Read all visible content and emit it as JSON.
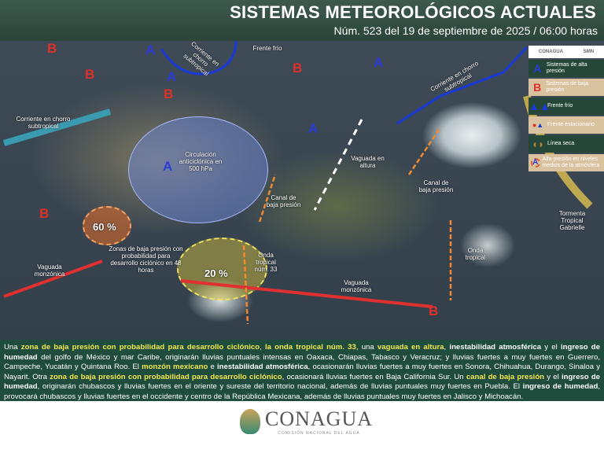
{
  "header": {
    "title": "SISTEMAS METEOROLÓGICOS ACTUALES",
    "subtitle": "Núm. 523 del 19 de septiembre de 2025 / 06:00 horas"
  },
  "legend": {
    "logos": [
      "CONAGUA",
      "SMN"
    ],
    "items": [
      {
        "symbol": "A",
        "label": "Sistemas de alta presión"
      },
      {
        "symbol": "B",
        "label": "Sistemas de baja presión"
      },
      {
        "symbol": "cold-front-icon",
        "label": "Frente frío"
      },
      {
        "symbol": "stationary-front-icon",
        "label": "Frente estacionario"
      },
      {
        "symbol": "dry-line-icon",
        "label": "Línea seca"
      },
      {
        "symbol": "A",
        "label": "Alta presión en niveles medios de la atmósfera"
      }
    ]
  },
  "map": {
    "labels": [
      "Corriente en chorro subtropical",
      "Frente frío",
      "Corriente en chorro subtropical",
      "Circulación anticiclónica en 500 hPa",
      "Vaguada en altura",
      "Corriente en chorro subtropical",
      "Canal de baja presión",
      "Canal de baja presión",
      "Zonas de baja presión con probabilidad para desarrollo ciclónico en 48 horas",
      "Onda tropical núm. 33",
      "Vaguada monzónica",
      "Vaguada monzónica",
      "Onda tropical",
      "Tormenta Tropical Gabrielle"
    ],
    "probabilities": [
      "60 %",
      "20 %"
    ],
    "colors": {
      "high": "#2a3cd8",
      "low": "#e0302a",
      "cold_front": "#1a3ad8",
      "trough": "#f08a30",
      "monsoon": "#e03030"
    }
  },
  "bulletin": [
    {
      "t": "Una "
    },
    {
      "t": "zona de baja presión con probabilidad para desarrollo ciclónico",
      "s": "hl"
    },
    {
      "t": ", "
    },
    {
      "t": "la onda tropical núm. 33",
      "s": "hl"
    },
    {
      "t": ", una "
    },
    {
      "t": "vaguada en altura",
      "s": "hl"
    },
    {
      "t": ", "
    },
    {
      "t": "inestabilidad atmosférica",
      "s": "b"
    },
    {
      "t": " y el "
    },
    {
      "t": "ingreso de humedad",
      "s": "b"
    },
    {
      "t": " del golfo de México y mar Caribe, originarán lluvias puntuales intensas en Oaxaca, Chiapas, Tabasco y Veracruz; y lluvias fuertes a muy fuertes en Guerrero, Campeche, Yucatán y Quintana Roo. El "
    },
    {
      "t": "monzón mexicano",
      "s": "hl"
    },
    {
      "t": " e "
    },
    {
      "t": "inestabilidad atmosférica",
      "s": "b"
    },
    {
      "t": ", ocasionarán lluvias fuertes a muy fuertes en Sonora, Chihuahua, Durango, Sinaloa y Nayarit. Otra "
    },
    {
      "t": "zona de baja presión con probabilidad para desarrollo ciclónico",
      "s": "hl"
    },
    {
      "t": ", ocasionará lluvias fuertes en Baja California Sur. Un "
    },
    {
      "t": "canal de baja presión",
      "s": "hl"
    },
    {
      "t": " y el "
    },
    {
      "t": "ingreso de humedad",
      "s": "b"
    },
    {
      "t": ", originarán chubascos y lluvias fuertes en el oriente y sureste del territorio nacional, además de lluvias puntuales muy fuertes en Puebla. El "
    },
    {
      "t": "ingreso de humedad",
      "s": "b"
    },
    {
      "t": ", provocará chubascos y lluvias fuertes en el occidente y centro de la República Mexicana, además de lluvias puntuales muy fuertes en Jalisco y Michoacán."
    }
  ],
  "footer": {
    "logo": "CONAGUA",
    "logo_sub": "COMISIÓN NACIONAL DEL AGUA"
  }
}
